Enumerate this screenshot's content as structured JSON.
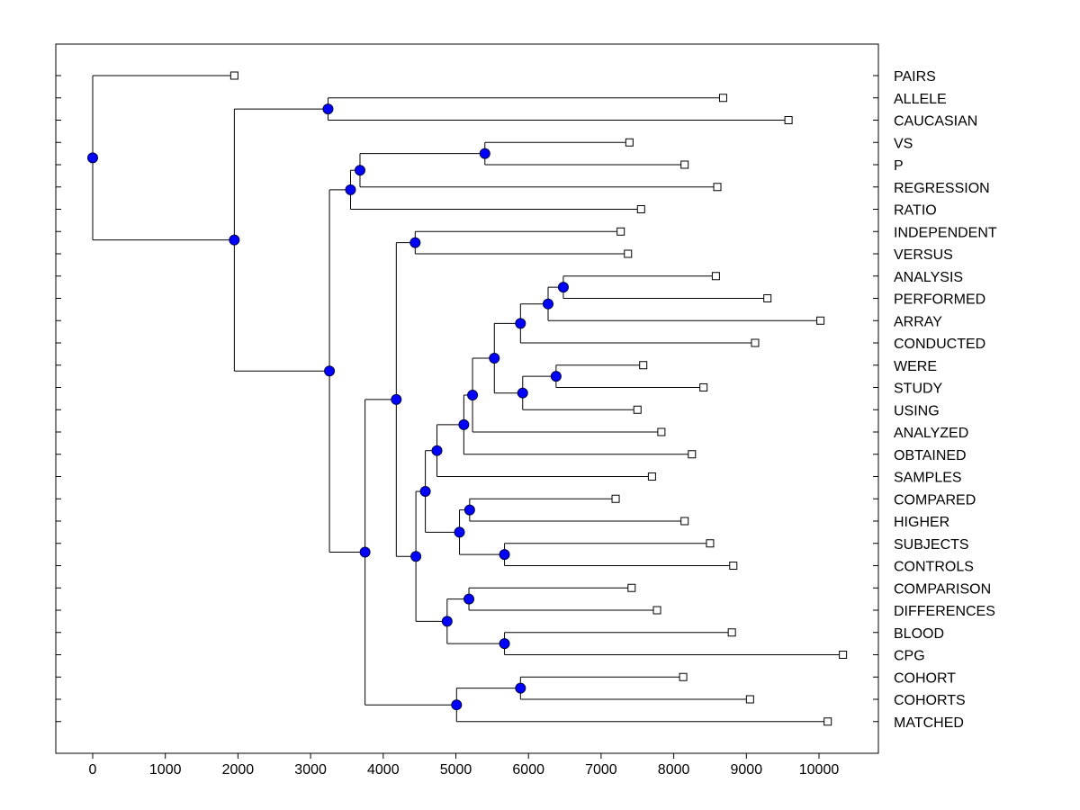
{
  "chart_data": {
    "type": "dendrogram",
    "orientation": "horizontal",
    "x_ticks": [
      "0",
      "1000",
      "2000",
      "3000",
      "4000",
      "5000",
      "6000",
      "7000",
      "8000",
      "9000",
      "10000"
    ],
    "xlim": [
      -500,
      10900
    ],
    "leaves": [
      {
        "name": "PAIRS",
        "end": 1950
      },
      {
        "name": "ALLELE",
        "end": 8680
      },
      {
        "name": "CAUCASIAN",
        "end": 9580
      },
      {
        "name": "VS",
        "end": 7390
      },
      {
        "name": "P",
        "end": 8150
      },
      {
        "name": "REGRESSION",
        "end": 8600
      },
      {
        "name": "RATIO",
        "end": 7550
      },
      {
        "name": "INDEPENDENT",
        "end": 7270
      },
      {
        "name": "VERSUS",
        "end": 7370
      },
      {
        "name": "ANALYSIS",
        "end": 8580
      },
      {
        "name": "PERFORMED",
        "end": 9290
      },
      {
        "name": "ARRAY",
        "end": 10020
      },
      {
        "name": "CONDUCTED",
        "end": 9120
      },
      {
        "name": "WERE",
        "end": 7580
      },
      {
        "name": "STUDY",
        "end": 8410
      },
      {
        "name": "USING",
        "end": 7500
      },
      {
        "name": "ANALYZED",
        "end": 7830
      },
      {
        "name": "OBTAINED",
        "end": 8250
      },
      {
        "name": "SAMPLES",
        "end": 7700
      },
      {
        "name": "COMPARED",
        "end": 7200
      },
      {
        "name": "HIGHER",
        "end": 8150
      },
      {
        "name": "SUBJECTS",
        "end": 8500
      },
      {
        "name": "CONTROLS",
        "end": 8820
      },
      {
        "name": "COMPARISON",
        "end": 7420
      },
      {
        "name": "DIFFERENCES",
        "end": 7770
      },
      {
        "name": "BLOOD",
        "end": 8800
      },
      {
        "name": "CPG",
        "end": 10330
      },
      {
        "name": "COHORT",
        "end": 8130
      },
      {
        "name": "COHORTS",
        "end": 9050
      },
      {
        "name": "MATCHED",
        "end": 10120
      }
    ],
    "nodes": [
      {
        "id": "n_allele_caucasian",
        "x": 3240,
        "children": [
          1,
          2
        ]
      },
      {
        "id": "n_vs_p",
        "x": 5400,
        "children": [
          3,
          4
        ]
      },
      {
        "id": "n_vsp_regression",
        "x": 3680,
        "children": [
          "n_vs_p",
          5
        ]
      },
      {
        "id": "n_ratio",
        "x": 3550,
        "children": [
          "n_vsp_regression",
          6
        ]
      },
      {
        "id": "n_independent_versus",
        "x": 4440,
        "children": [
          7,
          8
        ]
      },
      {
        "id": "n_analysis_performed",
        "x": 6480,
        "children": [
          9,
          10
        ]
      },
      {
        "id": "n_array",
        "x": 6270,
        "children": [
          "n_analysis_performed",
          11
        ]
      },
      {
        "id": "n_conducted",
        "x": 5890,
        "children": [
          "n_array",
          12
        ]
      },
      {
        "id": "n_were_study",
        "x": 6380,
        "children": [
          13,
          14
        ]
      },
      {
        "id": "n_using",
        "x": 5920,
        "children": [
          "n_were_study",
          15
        ]
      },
      {
        "id": "n_conducted_using",
        "x": 5530,
        "children": [
          "n_conducted",
          "n_using"
        ]
      },
      {
        "id": "n_analyzed",
        "x": 5230,
        "children": [
          "n_conducted_using",
          16
        ]
      },
      {
        "id": "n_obtained",
        "x": 5110,
        "children": [
          "n_analyzed",
          17
        ]
      },
      {
        "id": "n_samples",
        "x": 4740,
        "children": [
          "n_obtained",
          18
        ]
      },
      {
        "id": "n_compared_higher",
        "x": 5190,
        "children": [
          19,
          20
        ]
      },
      {
        "id": "n_subjects_controls",
        "x": 5670,
        "children": [
          21,
          22
        ]
      },
      {
        "id": "n_compared_subjects",
        "x": 5050,
        "children": [
          "n_compared_higher",
          "n_subjects_controls"
        ]
      },
      {
        "id": "n_big_a",
        "x": 4580,
        "children": [
          "n_samples",
          "n_compared_subjects"
        ]
      },
      {
        "id": "n_comparison_differences",
        "x": 5180,
        "children": [
          23,
          24
        ]
      },
      {
        "id": "n_blood_cpg",
        "x": 5670,
        "children": [
          25,
          26
        ]
      },
      {
        "id": "n_comp_blood",
        "x": 4880,
        "children": [
          "n_comparison_differences",
          "n_blood_cpg"
        ]
      },
      {
        "id": "n_big_b",
        "x": 4450,
        "children": [
          "n_big_a",
          "n_comp_blood"
        ]
      },
      {
        "id": "n_indep_bigb",
        "x": 4180,
        "children": [
          "n_independent_versus",
          "n_big_b"
        ]
      },
      {
        "id": "n_cohort_cohorts",
        "x": 5890,
        "children": [
          27,
          28
        ]
      },
      {
        "id": "n_matched",
        "x": 5010,
        "children": [
          "n_cohort_cohorts",
          29
        ]
      },
      {
        "id": "n_lower",
        "x": 3750,
        "children": [
          "n_indep_bigb",
          "n_matched"
        ]
      },
      {
        "id": "n_main",
        "x": 3260,
        "children": [
          "n_ratio",
          "n_lower"
        ]
      },
      {
        "id": "n_second",
        "x": 1950,
        "children": [
          "n_allele_caucasian",
          "n_main"
        ]
      },
      {
        "id": "n_root",
        "x": 0,
        "children": [
          0,
          "n_second"
        ]
      }
    ],
    "colors": {
      "node_fill": "#0000ff",
      "line": "#000000",
      "leaf_fill": "#ffffff"
    }
  }
}
